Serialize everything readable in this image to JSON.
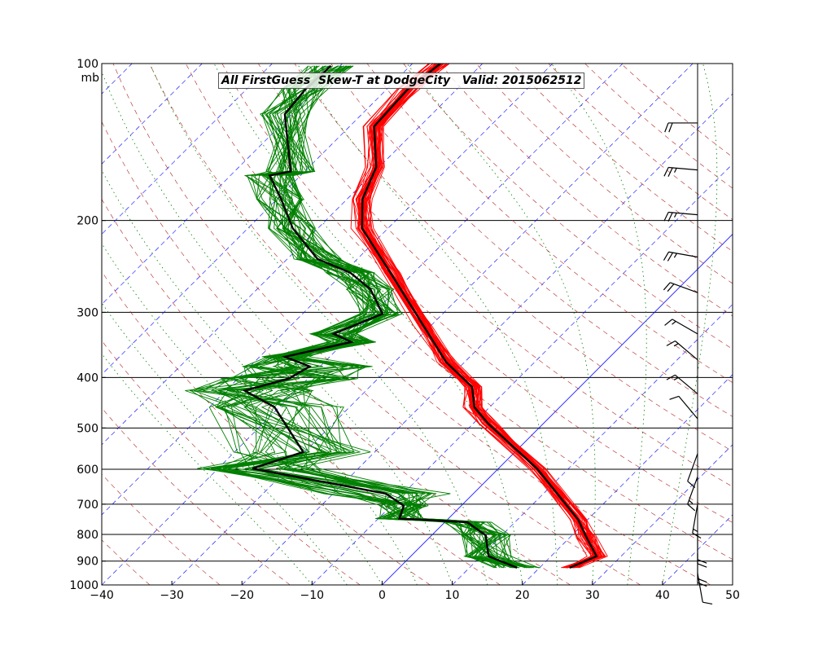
{
  "chart_data": {
    "type": "line",
    "title": "All FirstGuess  Skew-T at DodgeCity   Valid: 2015062512",
    "xlabel": "",
    "ylabel": "mb",
    "xlim": [
      -40,
      50
    ],
    "ylim": [
      1000,
      100
    ],
    "x_ticks": [
      "−40",
      "−30",
      "−20",
      "−10",
      "0",
      "10",
      "20",
      "30",
      "40",
      "50"
    ],
    "y_ticks": [
      "100",
      "200",
      "300",
      "400",
      "500",
      "600",
      "700",
      "800",
      "900",
      "1000"
    ],
    "y_tick_values": [
      100,
      200,
      300,
      400,
      500,
      600,
      700,
      800,
      900,
      1000
    ],
    "ensemble_members": 40,
    "series": [
      {
        "name": "Mean temperature",
        "color": "#000000",
        "p": [
          927,
          881,
          811,
          750,
          598,
          491,
          456,
          417,
          374,
          318,
          252,
          207,
          182,
          158,
          132,
          112,
          100
        ],
        "t": [
          24.3,
          26.5,
          22.4,
          18.7,
          5.5,
          -7.8,
          -12.2,
          -15.4,
          -22.6,
          -31.1,
          -43.3,
          -53.7,
          -57.8,
          -60.4,
          -66.5,
          -67,
          -66
        ]
      },
      {
        "name": "Mean dewpoint",
        "color": "#000000",
        "p": [
          927,
          881,
          803,
          758,
          750,
          746,
          705,
          668,
          598,
          556,
          456,
          424,
          402,
          381,
          365,
          342,
          330,
          302,
          271,
          252,
          237,
          207,
          182,
          164,
          161,
          125,
          112,
          101
        ],
        "t": [
          16.8,
          11.1,
          7.7,
          3.2,
          -3.4,
          -7,
          -8.2,
          -12.5,
          -35.1,
          -30.2,
          -40.7,
          -47.3,
          -42.7,
          -41.5,
          -46.4,
          -39,
          -42.7,
          -38.6,
          -43.8,
          -49,
          -55.7,
          -63.6,
          -69.4,
          -74.4,
          -72,
          -81,
          -81.6,
          -81.3
        ]
      },
      {
        "name": "Ensemble temperature",
        "color": "#ff0000"
      },
      {
        "name": "Ensemble dewpoint",
        "color": "#008000"
      }
    ],
    "winds": [
      {
        "p": 130,
        "dir": 270,
        "kt": 20
      },
      {
        "p": 160,
        "dir": 275,
        "kt": 25
      },
      {
        "p": 195,
        "dir": 275,
        "kt": 25
      },
      {
        "p": 235,
        "dir": 280,
        "kt": 25
      },
      {
        "p": 275,
        "dir": 290,
        "kt": 20
      },
      {
        "p": 330,
        "dir": 300,
        "kt": 15
      },
      {
        "p": 370,
        "dir": 310,
        "kt": 15
      },
      {
        "p": 430,
        "dir": 310,
        "kt": 15
      },
      {
        "p": 480,
        "dir": 320,
        "kt": 10
      },
      {
        "p": 560,
        "dir": 200,
        "kt": 10
      },
      {
        "p": 620,
        "dir": 200,
        "kt": 15
      },
      {
        "p": 700,
        "dir": 190,
        "kt": 15
      },
      {
        "p": 800,
        "dir": 180,
        "kt": 20
      },
      {
        "p": 870,
        "dir": 180,
        "kt": 20
      },
      {
        "p": 950,
        "dir": 170,
        "kt": 10
      }
    ],
    "colors": {
      "isotherm": "#0000ff",
      "dry_adiabat": "#b22222",
      "moist_adiabat": "#008000",
      "isobar": "#000000"
    },
    "grid": true
  }
}
